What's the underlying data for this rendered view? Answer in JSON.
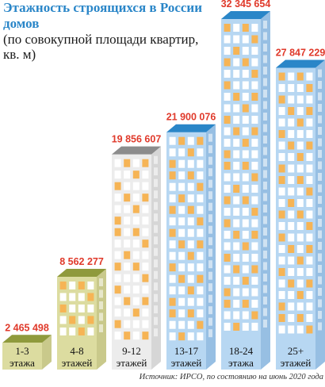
{
  "title": "Этажность строящихся в России домов",
  "subtitle": "(по совокупной площади квартир, кв. м)",
  "source": "Источник: ИРСО, по состоянию на июнь 2020 года",
  "chart_data": {
    "type": "bar",
    "style": "pictorial-buildings",
    "categories": [
      {
        "top": "1-3",
        "bottom": "этажа"
      },
      {
        "top": "4-8",
        "bottom": "этажей"
      },
      {
        "top": "9-12",
        "bottom": "этажей"
      },
      {
        "top": "13-17",
        "bottom": "этажей"
      },
      {
        "top": "18-24",
        "bottom": "этажа"
      },
      {
        "top": "25+",
        "bottom": "этажей"
      }
    ],
    "values": [
      2465498,
      8562277,
      19856607,
      21900076,
      32345654,
      27847229
    ],
    "value_labels": [
      "2 465 498",
      "8 562 277",
      "19 856 607",
      "21 900 076",
      "32 345 654",
      "27 847 229"
    ],
    "colors": {
      "value_label": "#e03a2b",
      "title": "#2a86c8",
      "olive_front": "#dcdca0",
      "olive_side": "#c9c98b",
      "olive_roof": "#8f9a3c",
      "gray_front": "#ececec",
      "gray_side": "#d6d6d6",
      "gray_roof": "#8c8c8c",
      "blue_front": "#b7d7f2",
      "blue_side": "#97bfe3",
      "blue_roof": "#2a86c8",
      "window": "#ffffff",
      "lit_window": "#f6b455"
    },
    "building_styles": [
      "olive",
      "olive",
      "gray",
      "blue",
      "blue",
      "blue"
    ]
  }
}
